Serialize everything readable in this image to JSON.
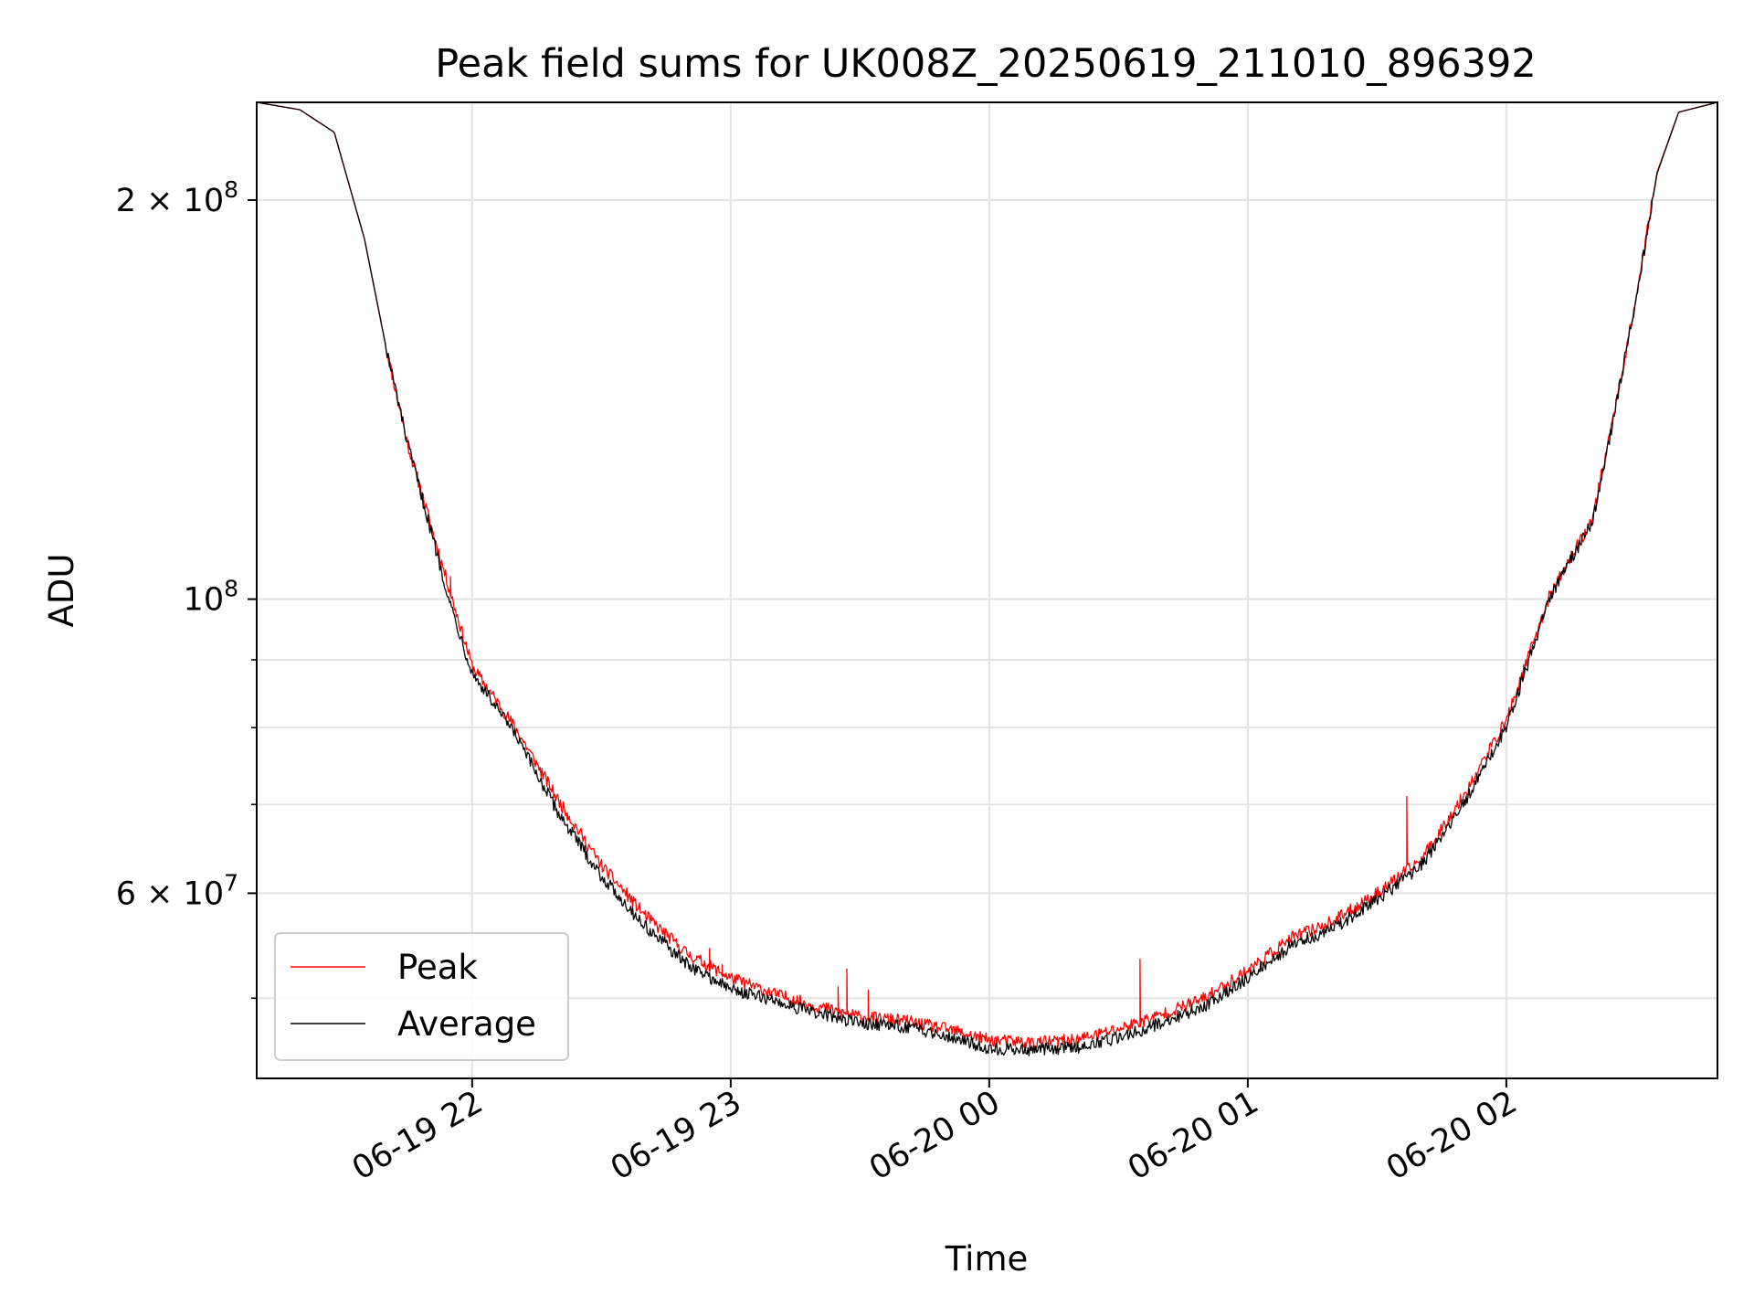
{
  "chart_data": {
    "type": "line",
    "title": "Peak field sums for UK008Z_20250619_211010_896392",
    "xlabel": "Time",
    "ylabel": "ADU",
    "y_scale": "log",
    "grid": true,
    "legend_position": "lower-left",
    "x_range": [
      "2025-06-19 21:10",
      "2025-06-20 02:49"
    ],
    "ylim": [
      43500000,
      237000000
    ],
    "x_ticks": [
      "06-19 22",
      "06-19 23",
      "06-20 00",
      "06-20 01",
      "06-20 02"
    ],
    "x_tick_times": [
      "2025-06-19 22:00",
      "2025-06-19 23:00",
      "2025-06-20 00:00",
      "2025-06-20 01:00",
      "2025-06-20 02:00"
    ],
    "y_ticks": [
      {
        "value": 200000000,
        "base": "2 × 10",
        "exp": "8"
      },
      {
        "value": 100000000,
        "base": "10",
        "exp": "8"
      },
      {
        "value": 60000000,
        "base": "6 × 10",
        "exp": "7"
      }
    ],
    "y_minor_ticks": [
      50000000,
      70000000,
      80000000,
      90000000
    ],
    "series": [
      {
        "name": "Peak",
        "color": "#ff0000",
        "x": [
          "2025-06-19 21:10",
          "2025-06-19 21:20",
          "2025-06-19 21:28",
          "2025-06-19 21:35",
          "2025-06-19 21:40",
          "2025-06-19 21:45",
          "2025-06-19 21:50",
          "2025-06-19 21:55",
          "2025-06-19 22:00",
          "2025-06-19 22:10",
          "2025-06-19 22:20",
          "2025-06-19 22:30",
          "2025-06-19 22:40",
          "2025-06-19 22:50",
          "2025-06-19 23:00",
          "2025-06-19 23:10",
          "2025-06-19 23:20",
          "2025-06-19 23:30",
          "2025-06-19 23:40",
          "2025-06-19 23:50",
          "2025-06-20 00:00",
          "2025-06-20 00:10",
          "2025-06-20 00:20",
          "2025-06-20 00:30",
          "2025-06-20 00:40",
          "2025-06-20 00:50",
          "2025-06-20 01:00",
          "2025-06-20 01:10",
          "2025-06-20 01:20",
          "2025-06-20 01:30",
          "2025-06-20 01:40",
          "2025-06-20 01:50",
          "2025-06-20 02:00",
          "2025-06-20 02:10",
          "2025-06-20 02:20",
          "2025-06-20 02:25",
          "2025-06-20 02:30",
          "2025-06-20 02:35",
          "2025-06-20 02:40",
          "2025-06-20 02:49"
        ],
        "values": [
          237000000,
          234000000,
          225000000,
          187000000,
          155000000,
          131000000,
          115000000,
          101000000,
          89000000,
          80000000,
          70500000,
          63000000,
          57800000,
          54000000,
          51800000,
          50400000,
          49300000,
          48400000,
          48100000,
          47400000,
          46500000,
          46300000,
          46500000,
          47400000,
          48600000,
          50000000,
          52500000,
          55500000,
          57200000,
          60000000,
          63500000,
          71000000,
          81000000,
          100500000,
          115000000,
          138000000,
          168000000,
          210000000,
          233000000,
          237000000
        ],
        "spikes": [
          {
            "x": "2025-06-19 21:55",
            "value": 104000000
          },
          {
            "x": "2025-06-19 22:22",
            "value": 69000000
          },
          {
            "x": "2025-06-19 22:52",
            "value": 53500000
          },
          {
            "x": "2025-06-19 22:55",
            "value": 54500000
          },
          {
            "x": "2025-06-19 22:58",
            "value": 53000000
          },
          {
            "x": "2025-06-19 23:25",
            "value": 51000000
          },
          {
            "x": "2025-06-19 23:27",
            "value": 52600000
          },
          {
            "x": "2025-06-19 23:32",
            "value": 50700000
          },
          {
            "x": "2025-06-20 00:35",
            "value": 53500000
          },
          {
            "x": "2025-06-20 01:37",
            "value": 71000000
          }
        ]
      },
      {
        "name": "Average",
        "color": "#000000",
        "x": [
          "2025-06-19 21:10",
          "2025-06-19 21:20",
          "2025-06-19 21:28",
          "2025-06-19 21:35",
          "2025-06-19 21:40",
          "2025-06-19 21:45",
          "2025-06-19 21:50",
          "2025-06-19 21:55",
          "2025-06-19 22:00",
          "2025-06-19 22:10",
          "2025-06-19 22:20",
          "2025-06-19 22:30",
          "2025-06-19 22:40",
          "2025-06-19 22:50",
          "2025-06-19 23:00",
          "2025-06-19 23:10",
          "2025-06-19 23:20",
          "2025-06-19 23:30",
          "2025-06-19 23:40",
          "2025-06-19 23:50",
          "2025-06-20 00:00",
          "2025-06-20 00:10",
          "2025-06-20 00:20",
          "2025-06-20 00:30",
          "2025-06-20 00:40",
          "2025-06-20 00:50",
          "2025-06-20 01:00",
          "2025-06-20 01:10",
          "2025-06-20 01:20",
          "2025-06-20 01:30",
          "2025-06-20 01:40",
          "2025-06-20 01:50",
          "2025-06-20 02:00",
          "2025-06-20 02:10",
          "2025-06-20 02:20",
          "2025-06-20 02:25",
          "2025-06-20 02:30",
          "2025-06-20 02:35",
          "2025-06-20 02:40",
          "2025-06-20 02:49"
        ],
        "values": [
          237000000,
          234000000,
          225000000,
          187000000,
          155000000,
          131000000,
          114000000,
          99000000,
          88000000,
          79000000,
          69000000,
          61800000,
          56700000,
          53000000,
          50800000,
          49800000,
          48700000,
          47900000,
          47600000,
          46900000,
          45800000,
          45700000,
          45900000,
          46700000,
          47900000,
          49300000,
          51800000,
          54800000,
          56500000,
          59300000,
          62800000,
          70000000,
          80000000,
          100000000,
          114500000,
          137500000,
          167500000,
          209500000,
          233000000,
          237000000
        ]
      }
    ]
  }
}
